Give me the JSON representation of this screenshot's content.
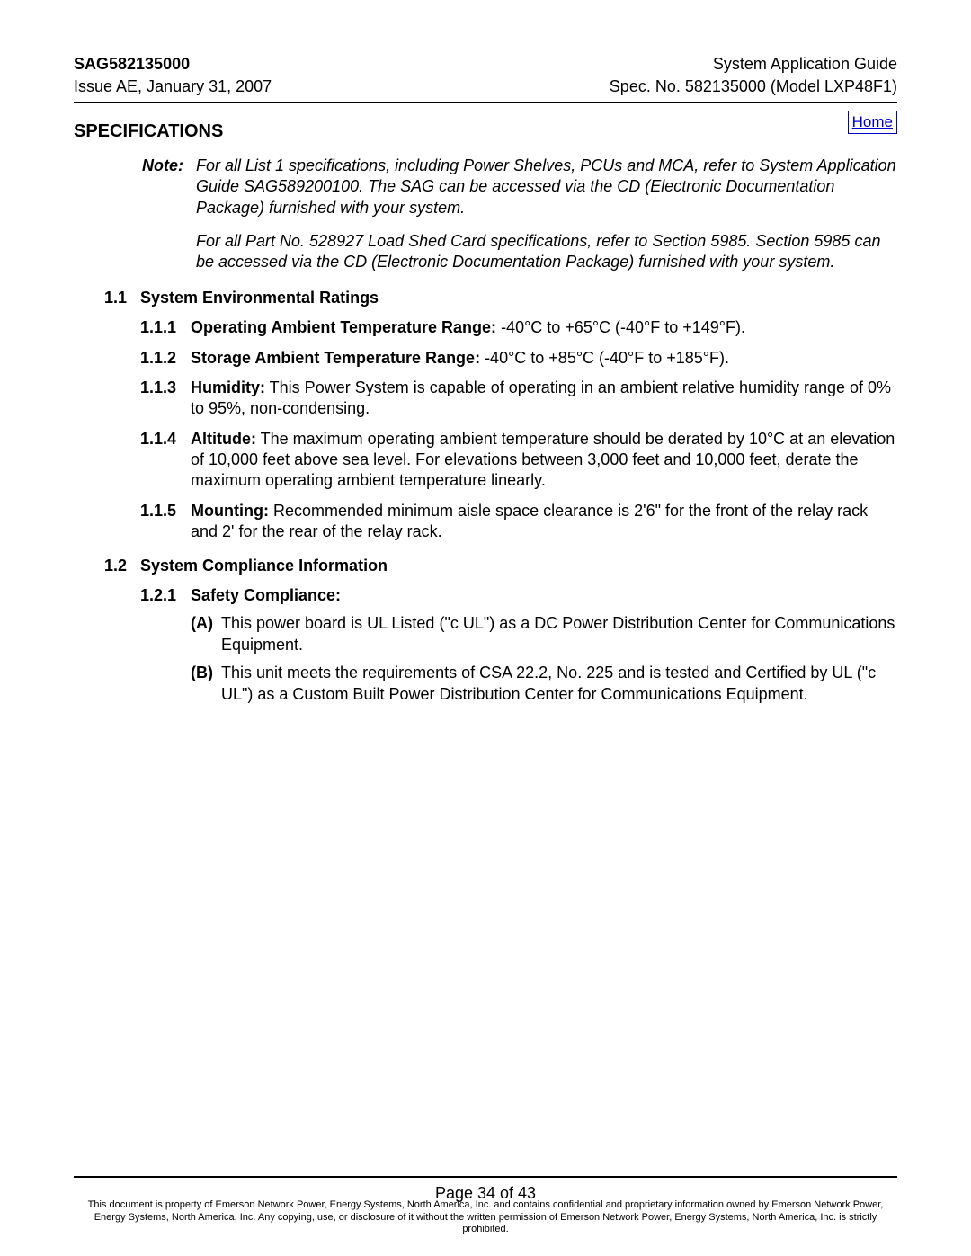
{
  "header": {
    "left_line1": "SAG582135000",
    "left_line2": "Issue AE, January 31, 2007",
    "right_line1": "System Application Guide",
    "right_line2": "Spec. No. 582135000 (Model LXP48F1)"
  },
  "home_link": "Home",
  "section_title": "SPECIFICATIONS",
  "note": {
    "label": "Note:",
    "para1": "For all List 1 specifications, including Power Shelves, PCUs and MCA, refer to System Application Guide SAG589200100.  The SAG can be accessed via the CD (Electronic Documentation Package) furnished with your system.",
    "para2": "For all Part No. 528927 Load Shed Card specifications, refer to Section 5985.  Section 5985 can be accessed via the CD (Electronic Documentation Package) furnished with your system."
  },
  "s11": {
    "num": "1.1",
    "title": "System Environmental Ratings",
    "i1": {
      "num": "1.1.1",
      "label": "Operating Ambient Temperature Range:",
      "text": "  -40°C to +65°C (-40°F to +149°F)."
    },
    "i2": {
      "num": "1.1.2",
      "label": "Storage Ambient Temperature Range:",
      "text": "  -40°C to +85°C (-40°F to +185°F)."
    },
    "i3": {
      "num": "1.1.3",
      "label": "Humidity:",
      "text": "  This Power System is capable of operating in an ambient relative humidity range of 0% to 95%, non-condensing."
    },
    "i4": {
      "num": "1.1.4",
      "label": "Altitude:",
      "text": "  The maximum operating ambient temperature should be derated by 10°C at an elevation of 10,000 feet above sea level.  For elevations between 3,000 feet and 10,000 feet, derate the maximum operating ambient temperature linearly."
    },
    "i5": {
      "num": "1.1.5",
      "label": "Mounting:",
      "text": "  Recommended minimum aisle space clearance is 2'6\" for the front of the relay rack and 2' for the rear of the relay rack."
    }
  },
  "s12": {
    "num": "1.2",
    "title": "System Compliance Information",
    "i1": {
      "num": "1.2.1",
      "label": "Safety Compliance:"
    },
    "a": {
      "num": "(A)",
      "text": "This power board is UL Listed (\"c UL\") as a DC Power Distribution Center for Communications Equipment."
    },
    "b": {
      "num": "(B)",
      "text": "This unit meets the requirements of CSA 22.2, No. 225 and is tested and Certified by UL (\"c UL\") as a Custom Built Power Distribution Center for Communications Equipment."
    }
  },
  "page_num": "Page 34 of 43",
  "footer": "This document is property of Emerson Network Power, Energy Systems, North America, Inc. and contains confidential and proprietary information owned by Emerson Network Power, Energy Systems, North America, Inc.  Any copying, use, or disclosure of it without the written permission of Emerson Network Power, Energy Systems, North America, Inc. is strictly prohibited."
}
